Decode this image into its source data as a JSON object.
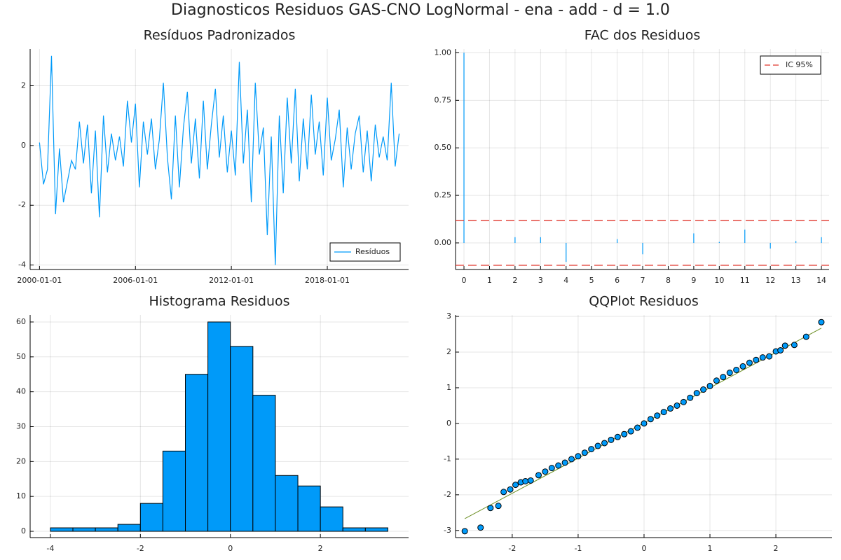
{
  "title": "Diagnosticos Residuos  GAS-CNO LogNormal - ena - add - d = 1.0",
  "chart_data": [
    {
      "type": "line",
      "title": "Resíduos Padronizados",
      "x": [
        "2000-01-01",
        "2000-04-01",
        "2000-07-01",
        "2000-10-01",
        "2001-01-01",
        "2001-04-01",
        "2001-07-01",
        "2001-10-01",
        "2002-01-01",
        "2002-04-01",
        "2002-07-01",
        "2002-10-01",
        "2003-01-01",
        "2003-04-01",
        "2003-07-01",
        "2003-10-01",
        "2004-01-01",
        "2004-04-01",
        "2004-07-01",
        "2004-10-01",
        "2005-01-01",
        "2005-04-01",
        "2005-07-01",
        "2005-10-01",
        "2006-01-01",
        "2006-04-01",
        "2006-07-01",
        "2006-10-01",
        "2007-01-01",
        "2007-04-01",
        "2007-07-01",
        "2007-10-01",
        "2008-01-01",
        "2008-04-01",
        "2008-07-01",
        "2008-10-01",
        "2009-01-01",
        "2009-04-01",
        "2009-07-01",
        "2009-10-01",
        "2010-01-01",
        "2010-04-01",
        "2010-07-01",
        "2010-10-01",
        "2011-01-01",
        "2011-04-01",
        "2011-07-01",
        "2011-10-01",
        "2012-01-01",
        "2012-04-01",
        "2012-07-01",
        "2012-10-01",
        "2013-01-01",
        "2013-04-01",
        "2013-07-01",
        "2013-10-01",
        "2014-01-01",
        "2014-04-01",
        "2014-07-01",
        "2014-10-01",
        "2015-01-01",
        "2015-04-01",
        "2015-07-01",
        "2015-10-01",
        "2016-01-01",
        "2016-04-01",
        "2016-07-01",
        "2016-10-01",
        "2017-01-01",
        "2017-04-01",
        "2017-07-01",
        "2017-10-01",
        "2018-01-01",
        "2018-04-01",
        "2018-07-01",
        "2018-10-01",
        "2019-01-01",
        "2019-04-01",
        "2019-07-01",
        "2019-10-01",
        "2020-01-01",
        "2020-04-01",
        "2020-07-01",
        "2020-10-01",
        "2021-01-01",
        "2021-04-01",
        "2021-07-01",
        "2021-10-01",
        "2022-01-01",
        "2022-04-01",
        "2022-07-01"
      ],
      "series": [
        {
          "name": "Resíduos",
          "color": "#009af9",
          "values": [
            0.1,
            -1.3,
            -0.8,
            3.0,
            -2.3,
            -0.1,
            -1.9,
            -1.2,
            -0.5,
            -0.8,
            0.8,
            -0.6,
            0.7,
            -1.6,
            0.5,
            -2.4,
            1.0,
            -0.9,
            0.4,
            -0.5,
            0.3,
            -0.7,
            1.5,
            0.1,
            1.4,
            -1.4,
            0.8,
            -0.3,
            0.9,
            -0.8,
            0.2,
            2.1,
            -0.4,
            -1.8,
            1.0,
            -1.4,
            0.6,
            1.8,
            -0.6,
            0.9,
            -1.1,
            1.5,
            -0.8,
            0.7,
            1.9,
            -0.4,
            1.0,
            -0.9,
            0.5,
            -1.0,
            2.8,
            -0.6,
            1.2,
            -1.9,
            2.1,
            -0.3,
            0.6,
            -3.0,
            0.3,
            -4.0,
            1.0,
            -1.6,
            1.6,
            -0.6,
            1.9,
            -1.2,
            0.9,
            -0.8,
            1.7,
            -0.3,
            0.8,
            -1.0,
            1.6,
            -0.5,
            0.2,
            1.2,
            -1.4,
            0.6,
            -0.8,
            0.4,
            1.0,
            -0.9,
            0.5,
            -1.2,
            0.7,
            -0.4,
            0.3,
            -0.5,
            2.1,
            -0.7,
            0.4
          ]
        }
      ],
      "xlim": [
        "1999-06-01",
        "2023-02-01"
      ],
      "xticks": [
        "2000-01-01",
        "2006-01-01",
        "2012-01-01",
        "2018-01-01"
      ],
      "ylim": [
        -4.15,
        3.23
      ],
      "yticks": [
        -4,
        -2,
        0,
        2
      ],
      "grid": true,
      "legend": "bottom right"
    },
    {
      "type": "stem",
      "title": "FAC dos Residuos",
      "x": [
        0,
        1,
        2,
        3,
        4,
        5,
        6,
        7,
        8,
        9,
        10,
        11,
        12,
        13,
        14
      ],
      "values": [
        1.0,
        0.0,
        0.03,
        0.03,
        -0.1,
        0.0,
        0.02,
        -0.06,
        0.0,
        0.05,
        0.005,
        0.07,
        -0.03,
        0.01,
        0.03
      ],
      "color": "#009af9",
      "bands": {
        "name": "IC 95%",
        "color": "#e0362c",
        "values": [
          0.118,
          -0.118
        ],
        "dash": true
      },
      "xlim": [
        -0.33,
        14.3
      ],
      "xticks": [
        0,
        1,
        2,
        3,
        4,
        5,
        6,
        7,
        8,
        9,
        10,
        11,
        12,
        13,
        14
      ],
      "ylim": [
        -0.14,
        1.02
      ],
      "yticks": [
        {
          "value": 0,
          "label": "0.00"
        },
        {
          "value": 0.25,
          "label": "0.25"
        },
        {
          "value": 0.5,
          "label": "0.50"
        },
        {
          "value": 0.75,
          "label": "0.75"
        },
        {
          "value": 1,
          "label": "1.00"
        }
      ],
      "grid": true,
      "legend": "top right"
    },
    {
      "type": "histogram",
      "title": "Histograma Residuos",
      "bins": [
        -4,
        -3.5,
        -3,
        -2.5,
        -2,
        -1.5,
        -1,
        -0.5,
        0,
        0.5,
        1,
        1.5,
        2,
        2.5,
        3,
        3.5
      ],
      "counts": [
        1,
        1,
        1,
        2,
        8,
        23,
        45,
        60,
        53,
        39,
        16,
        13,
        7,
        1,
        1
      ],
      "color": "#009af9",
      "xlim": [
        -4.45,
        3.96
      ],
      "xticks": [
        -4,
        -2,
        0,
        2
      ],
      "ylim": [
        -1.8,
        62
      ],
      "yticks": [
        0,
        10,
        20,
        30,
        40,
        50,
        60
      ],
      "grid": true
    },
    {
      "type": "scatter",
      "title": "QQPlot Residuos",
      "x": [
        -2.72,
        -2.48,
        -2.33,
        -2.21,
        -2.13,
        -2.03,
        -1.95,
        -1.87,
        -1.8,
        -1.72,
        -1.6,
        -1.5,
        -1.4,
        -1.3,
        -1.2,
        -1.1,
        -1.0,
        -0.9,
        -0.8,
        -0.7,
        -0.6,
        -0.5,
        -0.4,
        -0.3,
        -0.2,
        -0.1,
        0,
        0.1,
        0.2,
        0.3,
        0.4,
        0.5,
        0.6,
        0.7,
        0.8,
        0.9,
        1.0,
        1.1,
        1.2,
        1.3,
        1.4,
        1.5,
        1.6,
        1.7,
        1.8,
        1.9,
        2.0,
        2.07,
        2.14,
        2.28,
        2.46,
        2.69
      ],
      "y": [
        -3.02,
        -2.92,
        -2.37,
        -2.31,
        -1.92,
        -1.85,
        -1.72,
        -1.65,
        -1.62,
        -1.6,
        -1.45,
        -1.35,
        -1.25,
        -1.18,
        -1.1,
        -1.0,
        -0.92,
        -0.82,
        -0.72,
        -0.63,
        -0.55,
        -0.46,
        -0.38,
        -0.3,
        -0.22,
        -0.12,
        0.0,
        0.12,
        0.22,
        0.32,
        0.42,
        0.5,
        0.6,
        0.72,
        0.85,
        0.95,
        1.05,
        1.2,
        1.3,
        1.42,
        1.5,
        1.6,
        1.7,
        1.78,
        1.85,
        1.88,
        2.02,
        2.05,
        2.18,
        2.2,
        2.43,
        2.84
      ],
      "color": "#009af9",
      "line": {
        "x": [
          -2.72,
          2.69
        ],
        "y": [
          -2.67,
          2.67
        ],
        "color": "#6b8e23"
      },
      "xlim": [
        -2.86,
        2.85
      ],
      "xticks": [
        -2,
        -1,
        0,
        1,
        2
      ],
      "ylim": [
        -3.2,
        3.04
      ],
      "yticks": [
        -3,
        -2,
        -1,
        0,
        1,
        2,
        3
      ],
      "grid": true
    }
  ]
}
